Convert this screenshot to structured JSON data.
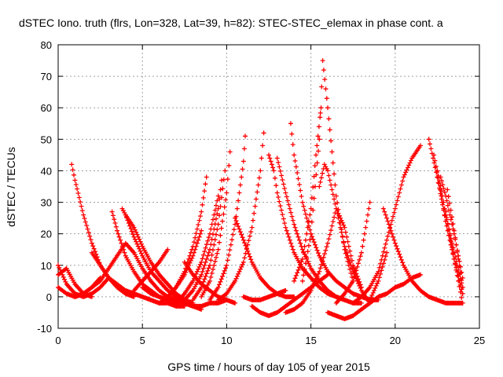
{
  "chart_data": {
    "type": "scatter",
    "title": "dSTEC Iono. truth (flrs, Lon=328, Lat=39, h=82): STEC-STEC_elemax in phase cont. a",
    "xlabel": "GPS time / hours of day 105 of year 2015",
    "ylabel": "dSTEC  / TECUs",
    "xlim": [
      0,
      25
    ],
    "ylim": [
      -10,
      80
    ],
    "xticks": [
      0,
      5,
      10,
      15,
      20,
      25
    ],
    "yticks": [
      -10,
      0,
      10,
      20,
      30,
      40,
      50,
      60,
      70,
      80
    ],
    "grid": true,
    "marker": "+",
    "color": "#ff0000",
    "series": [
      {
        "x": [
          0.0,
          0.5,
          1.0,
          1.5,
          2.0,
          2.5,
          3.0
        ],
        "y": [
          10,
          4,
          1,
          0,
          1,
          3,
          6
        ]
      },
      {
        "x": [
          0.0,
          0.5,
          1.0,
          1.5,
          2.0,
          2.5
        ],
        "y": [
          3,
          1,
          0,
          1,
          3,
          6
        ]
      },
      {
        "x": [
          0.0,
          0.5,
          1.0,
          1.5,
          2.0
        ],
        "y": [
          7,
          9,
          4,
          1,
          0
        ]
      },
      {
        "x": [
          0.8,
          1.0,
          1.5,
          2.0,
          2.5,
          3.0,
          3.5,
          4.0,
          4.5
        ],
        "y": [
          42,
          37,
          26,
          17,
          10,
          6,
          3,
          1,
          0
        ]
      },
      {
        "x": [
          1.0,
          1.5,
          2.0,
          2.5,
          3.0,
          3.5,
          4.0,
          4.5,
          5.0,
          5.5,
          6.0,
          6.5,
          7.0
        ],
        "y": [
          0,
          1,
          3,
          5,
          9,
          13,
          17,
          14,
          9,
          5,
          2,
          0,
          -1
        ]
      },
      {
        "x": [
          2.0,
          2.5,
          3.0,
          3.5,
          4.0,
          4.5,
          5.0,
          5.5,
          6.0,
          6.5,
          7.0,
          7.5
        ],
        "y": [
          14,
          10,
          6,
          4,
          2,
          1,
          0,
          -1,
          -2,
          -2,
          -3,
          -3
        ]
      },
      {
        "x": [
          3.2,
          3.5,
          4.0,
          4.5,
          5.0,
          5.5,
          6.0,
          6.5,
          7.0
        ],
        "y": [
          27,
          21,
          13,
          8,
          4,
          2,
          0,
          -1,
          -2
        ]
      },
      {
        "x": [
          3.8,
          4.0,
          4.5,
          5.0,
          5.5,
          6.0,
          6.5,
          7.0,
          7.5,
          8.0,
          8.5
        ],
        "y": [
          28,
          26,
          19,
          13,
          8,
          5,
          2,
          0,
          -2,
          -3,
          -4
        ]
      },
      {
        "x": [
          4.0,
          4.5,
          5.0,
          5.5,
          6.0,
          6.5,
          7.0,
          7.5,
          8.0
        ],
        "y": [
          26,
          22,
          16,
          11,
          7,
          4,
          1,
          -1,
          -2
        ]
      },
      {
        "x": [
          5.0,
          5.5,
          6.0,
          6.5,
          7.0,
          7.5,
          8.0,
          8.5,
          9.0,
          9.5,
          10.0
        ],
        "y": [
          3,
          1,
          0,
          -1,
          -2,
          -2,
          -3,
          -3,
          -2,
          -2,
          -1
        ]
      },
      {
        "x": [
          4.5,
          5.0,
          5.5,
          6.0,
          6.5
        ],
        "y": [
          2,
          5,
          8,
          11,
          15
        ]
      },
      {
        "x": [
          7.5,
          8.0,
          8.5,
          9.0,
          9.5,
          10.0,
          10.5
        ],
        "y": [
          11,
          7,
          4,
          2,
          0,
          -1,
          -2
        ]
      },
      {
        "x": [
          6.0,
          6.5,
          7.0,
          7.5,
          8.0,
          8.5
        ],
        "y": [
          -2,
          0,
          3,
          7,
          13,
          21
        ]
      },
      {
        "x": [
          6.5,
          7.0,
          7.5,
          8.0,
          8.5,
          8.8
        ],
        "y": [
          0,
          3,
          8,
          16,
          27,
          38
        ]
      },
      {
        "x": [
          7.0,
          7.5,
          8.0,
          8.5,
          9.0,
          9.5
        ],
        "y": [
          -2,
          1,
          5,
          11,
          20,
          32
        ]
      },
      {
        "x": [
          7.5,
          8.0,
          8.5,
          9.0,
          9.5,
          9.7
        ],
        "y": [
          -1,
          2,
          7,
          15,
          28,
          37
        ]
      },
      {
        "x": [
          8.0,
          8.5,
          9.0,
          9.5,
          9.9
        ],
        "y": [
          -1,
          3,
          10,
          23,
          40
        ]
      },
      {
        "x": [
          8.5,
          9.0,
          9.5,
          10.0,
          10.2
        ],
        "y": [
          0,
          5,
          15,
          33,
          46
        ]
      },
      {
        "x": [
          9.0,
          9.5,
          10.0,
          10.5,
          11.0,
          11.1
        ],
        "y": [
          -1,
          3,
          10,
          23,
          43,
          51
        ]
      },
      {
        "x": [
          9.5,
          10.0,
          10.5,
          11.0,
          11.5,
          12.0,
          12.2
        ],
        "y": [
          -1,
          1,
          5,
          11,
          22,
          40,
          52
        ]
      },
      {
        "x": [
          10.5,
          11.0,
          11.5,
          12.0,
          12.5,
          13.0,
          13.5,
          14.0
        ],
        "y": [
          25,
          18,
          11,
          6,
          3,
          1,
          0,
          0
        ]
      },
      {
        "x": [
          11.0,
          11.5,
          12.0,
          12.5,
          13.0,
          13.5
        ],
        "y": [
          0,
          -1,
          -1,
          0,
          1,
          2
        ]
      },
      {
        "x": [
          11.5,
          12.0,
          12.5,
          13.0,
          13.5,
          14.0,
          14.5,
          15.0,
          15.5,
          16.0
        ],
        "y": [
          -3,
          -5,
          -6,
          -5,
          -3,
          -1,
          1,
          3,
          5,
          7
        ]
      },
      {
        "x": [
          12.5,
          12.8,
          13.0,
          13.5,
          14.0,
          14.5,
          15.0,
          15.5,
          16.0,
          16.5,
          17.0
        ],
        "y": [
          45,
          40,
          33,
          22,
          14,
          9,
          6,
          3,
          1,
          0,
          -1
        ]
      },
      {
        "x": [
          13.0,
          13.5,
          14.0,
          14.5,
          15.0,
          15.5,
          16.0,
          16.5,
          17.0,
          17.5,
          18.0
        ],
        "y": [
          44,
          33,
          23,
          15,
          9,
          5,
          2,
          0,
          -1,
          -2,
          -2
        ]
      },
      {
        "x": [
          13.8,
          14.0,
          14.5,
          15.0,
          15.5,
          16.0,
          16.5,
          17.0,
          17.5,
          18.0,
          18.5,
          19.0
        ],
        "y": [
          55,
          45,
          30,
          20,
          13,
          8,
          5,
          3,
          1,
          0,
          -1,
          -1
        ]
      },
      {
        "x": [
          13.5,
          14.0,
          14.5,
          15.0,
          15.5,
          16.0,
          16.5,
          17.0,
          17.5,
          18.0
        ],
        "y": [
          -5,
          -4,
          -2,
          2,
          8,
          17,
          28,
          22,
          10,
          3
        ]
      },
      {
        "x": [
          14.0,
          14.5,
          15.0,
          15.3,
          15.6
        ],
        "y": [
          5,
          12,
          28,
          45,
          60
        ]
      },
      {
        "x": [
          14.5,
          15.0,
          15.5,
          15.7,
          16.0,
          16.5,
          17.0,
          17.5
        ],
        "y": [
          5,
          20,
          50,
          75,
          60,
          32,
          15,
          5
        ]
      },
      {
        "x": [
          15.5,
          15.8,
          16.0,
          16.5,
          17.0,
          17.5,
          18.0,
          18.5
        ],
        "y": [
          35,
          42,
          40,
          28,
          16,
          8,
          2,
          -2
        ]
      },
      {
        "x": [
          16.0,
          16.5,
          17.0,
          17.5,
          18.0,
          18.5,
          19.0,
          19.5,
          20.0,
          20.5,
          21.0,
          21.5
        ],
        "y": [
          -5,
          -6,
          -7,
          -6,
          -4,
          -2,
          0,
          1,
          3,
          4,
          6,
          7
        ]
      },
      {
        "x": [
          16.5,
          17.0,
          17.5,
          18.0,
          18.5
        ],
        "y": [
          -2,
          1,
          5,
          14,
          30
        ]
      },
      {
        "x": [
          17.5,
          18.0,
          18.5,
          19.0,
          19.5,
          20.0,
          20.5,
          21.0,
          21.5
        ],
        "y": [
          -2,
          0,
          3,
          8,
          18,
          28,
          38,
          44,
          48
        ]
      },
      {
        "x": [
          18.5,
          19.0,
          19.5
        ],
        "y": [
          -1,
          5,
          14
        ]
      },
      {
        "x": [
          19.3,
          19.5,
          20.0,
          20.5,
          21.0,
          21.5,
          22.0,
          22.5,
          23.0,
          23.5,
          24.0
        ],
        "y": [
          28,
          25,
          17,
          10,
          5,
          2,
          0,
          -1,
          -2,
          -2,
          -2
        ]
      },
      {
        "x": [
          22.0,
          22.5,
          23.0,
          23.5,
          24.0
        ],
        "y": [
          50,
          38,
          24,
          12,
          1
        ]
      },
      {
        "x": [
          22.3,
          22.6,
          23.0,
          23.5,
          24.0
        ],
        "y": [
          45,
          36,
          24,
          12,
          1
        ]
      },
      {
        "x": [
          22.5,
          22.8,
          23.0,
          23.5,
          24.0
        ],
        "y": [
          40,
          32,
          26,
          14,
          3
        ]
      },
      {
        "x": [
          22.7,
          23.0,
          23.5,
          24.0
        ],
        "y": [
          38,
          32,
          20,
          6
        ]
      },
      {
        "x": [
          23.1,
          23.5,
          24.0
        ],
        "y": [
          34,
          21,
          3
        ]
      },
      {
        "x": [
          23.0,
          23.5,
          24.0
        ],
        "y": [
          27,
          12,
          -2
        ]
      }
    ]
  }
}
